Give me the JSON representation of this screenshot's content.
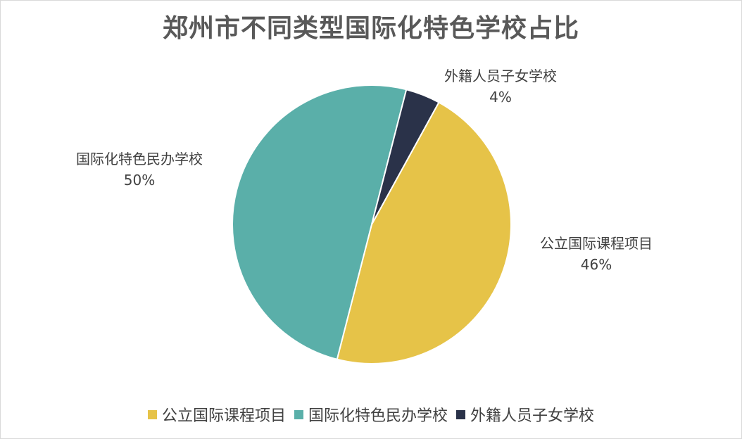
{
  "chart_data": {
    "type": "pie",
    "title": "郑州市不同类型国际化特色学校占比",
    "slices": [
      {
        "label": "公立国际课程项目",
        "value": 46,
        "value_label": "46%",
        "color": "#E6C348"
      },
      {
        "label": "国际化特色民办学校",
        "value": 50,
        "value_label": "50%",
        "color": "#5AAFA9"
      },
      {
        "label": "外籍人员子女学校",
        "value": 4,
        "value_label": "4%",
        "color": "#2A3249"
      }
    ],
    "legend_position": "bottom"
  }
}
